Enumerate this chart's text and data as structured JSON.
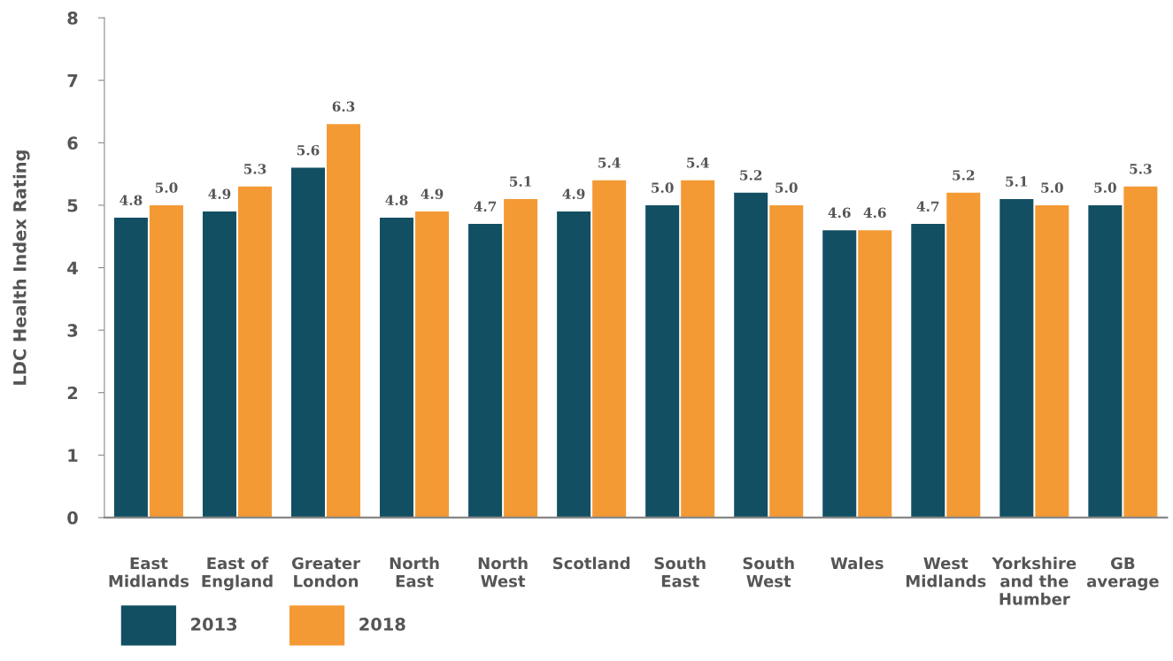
{
  "chart_data": {
    "type": "bar",
    "ylabel": "LDC Health Index Rating",
    "categories": [
      "East\nMidlands",
      "East of\nEngland",
      "Greater\nLondon",
      "North\nEast",
      "North\nWest",
      "Scotland",
      "South\nEast",
      "South\nWest",
      "Wales",
      "West\nMidlands",
      "Yorkshire\nand the\nHumber",
      "GB\naverage"
    ],
    "series": [
      {
        "name": "2013",
        "color": "#124f63",
        "values": [
          4.8,
          4.9,
          5.6,
          4.8,
          4.7,
          4.9,
          5.0,
          5.2,
          4.6,
          4.7,
          5.1,
          5.0
        ],
        "value_labels": [
          "4.8",
          "4.9",
          "5.6",
          "4.8",
          "4.7",
          "4.9",
          "5.0",
          "5.2",
          "4.6",
          "4.7",
          "5.1",
          "5.0"
        ]
      },
      {
        "name": "2018",
        "color": "#f49a35",
        "values": [
          5.0,
          5.3,
          6.3,
          4.9,
          5.1,
          5.4,
          5.4,
          5.0,
          4.6,
          5.2,
          5.0,
          5.3
        ],
        "value_labels": [
          "5.0",
          "5.3",
          "6.3",
          "4.9",
          "5.1",
          "5.4",
          "5.4",
          "5.0",
          "4.6",
          "5.2",
          "5.0",
          "5.3"
        ]
      }
    ],
    "ylim": [
      0,
      8
    ],
    "yticks": [
      0,
      1,
      2,
      3,
      4,
      5,
      6,
      7,
      8
    ],
    "grid": false,
    "legend": "bottom left"
  }
}
